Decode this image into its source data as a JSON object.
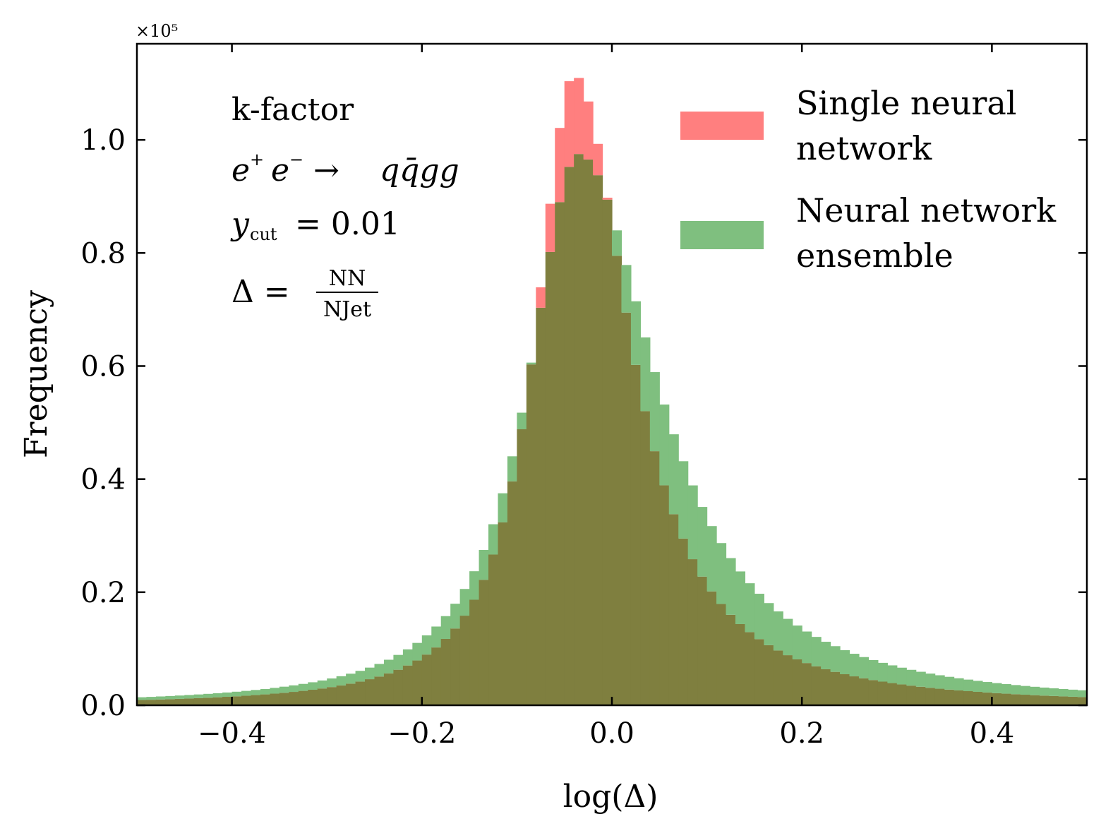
{
  "chart_data": {
    "type": "bar",
    "subtype": "overlaid-histogram",
    "title": "",
    "xlabel": "log(Δ)",
    "ylabel": "Frequency",
    "y_multiplier": "×10⁵",
    "xlim": [
      -0.5,
      0.5
    ],
    "ylim": [
      0,
      1.17
    ],
    "xticks": [
      -0.4,
      -0.2,
      0.0,
      0.2,
      0.4
    ],
    "xtick_labels": [
      "−0.4",
      "−0.2",
      "0.0",
      "0.2",
      "0.4"
    ],
    "yticks": [
      0.0,
      0.2,
      0.4,
      0.6,
      0.8,
      1.0
    ],
    "ytick_labels": [
      "0.0",
      "0.2",
      "0.4",
      "0.6",
      "0.8",
      "1.0"
    ],
    "grid": false,
    "legend_position": "top-right",
    "annotations": {
      "line1": "k-factor",
      "process_lhs": "e",
      "process_rhs": "qq̄gg",
      "ycut_label": "y",
      "ycut_sub": "cut",
      "ycut_value": "= 0.01",
      "delta_lhs": "Δ =",
      "delta_num": "NN",
      "delta_den": "NJet"
    },
    "bins": {
      "start": -0.5,
      "end": 0.5,
      "count": 100
    },
    "series": [
      {
        "name_line1": "Single neural",
        "name_line2": "network",
        "color": "#ff7f7f",
        "peak_center": -0.04,
        "peak_height": 1.115,
        "width_left": 0.052,
        "width_right": 0.075,
        "tail_shape": 1.1
      },
      {
        "name_line1": "Neural network",
        "name_line2": "ensemble",
        "color": "#7fbf7f",
        "peak_center": -0.035,
        "peak_height": 0.975,
        "width_left": 0.068,
        "width_right": 0.105,
        "tail_shape": 1.1
      }
    ],
    "overlap_color": "#7f7f3f"
  }
}
